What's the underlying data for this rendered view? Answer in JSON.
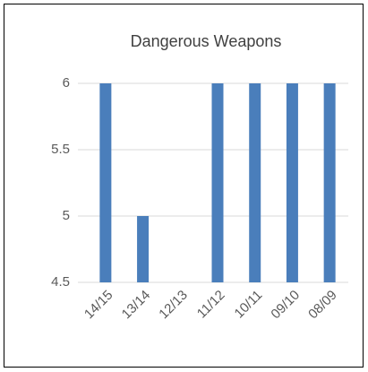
{
  "chart_data": {
    "type": "bar",
    "title": "Dangerous Weapons",
    "categories": [
      "14/15",
      "13/14",
      "12/13",
      "11/12",
      "10/11",
      "09/10",
      "08/09"
    ],
    "values": [
      6,
      5,
      null,
      6,
      6,
      6,
      6
    ],
    "color": "#4a7ebb",
    "ylim": [
      4.5,
      6
    ],
    "yticks": [
      4.5,
      5,
      5.5,
      6
    ],
    "grid": true
  }
}
